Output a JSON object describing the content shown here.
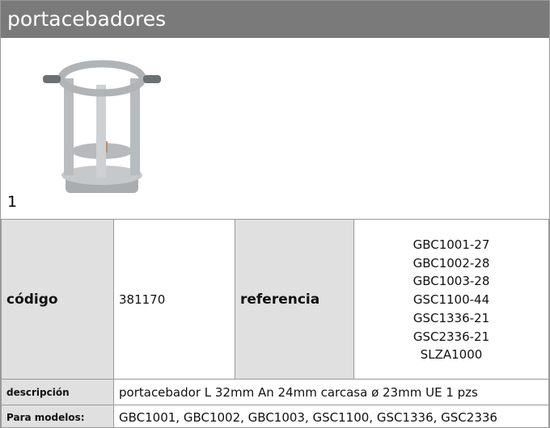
{
  "header": {
    "title": "portacebadores"
  },
  "image": {
    "label": "1"
  },
  "spec": {
    "code_label": "código",
    "code": "381170",
    "reference_label": "referencia",
    "references": [
      "GBC1001-27",
      "GBC1002-28",
      "GBC1003-28",
      "GSC1100-44",
      "GSC1336-21",
      "GSC2336-21",
      "SLZA1000"
    ]
  },
  "description": {
    "label": "descripción",
    "text": "portacebador  L 32mm An 24mm carcasa ø 23mm UE 1 pzs"
  },
  "models": {
    "label": "Para modelos:",
    "text": "GBC1001, GBC1002, GBC1003, GSC1100, GSC1336, GSC2336"
  }
}
